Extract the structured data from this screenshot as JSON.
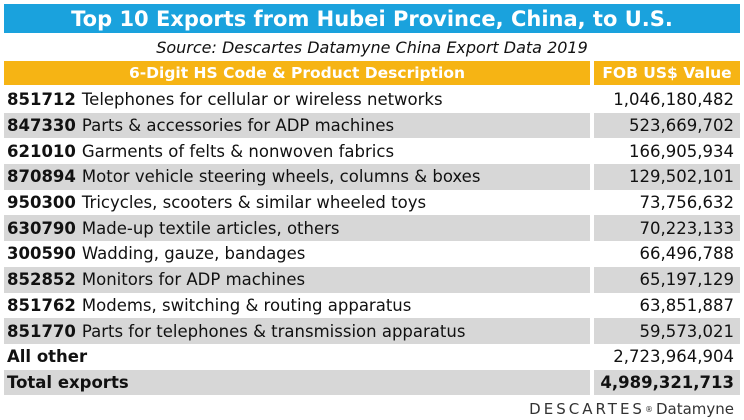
{
  "title": "Top 10 Exports from Hubei Province, China, to U.S.",
  "source": "Source: Descartes Datamyne China Export Data  2019",
  "header": {
    "description": "6-Digit HS Code & Product Description",
    "value": "FOB US$ Value"
  },
  "rows": [
    {
      "code": "851712",
      "description": "Telephones for cellular or wireless networks",
      "value": "1,046,180,482"
    },
    {
      "code": "847330",
      "description": "Parts & accessories for ADP machines",
      "value": "523,669,702"
    },
    {
      "code": "621010",
      "description": "Garments of felts & nonwoven fabrics",
      "value": "166,905,934"
    },
    {
      "code": "870894",
      "description": "Motor vehicle steering wheels, columns & boxes",
      "value": "129,502,101"
    },
    {
      "code": "950300",
      "description": "Tricycles, scooters & similar wheeled toys",
      "value": "73,756,632"
    },
    {
      "code": "630790",
      "description": "Made-up textile articles, others",
      "value": "70,223,133"
    },
    {
      "code": "300590",
      "description": "Wadding, gauze, bandages",
      "value": "66,496,788"
    },
    {
      "code": "852852",
      "description": "Monitors for ADP machines",
      "value": "65,197,129"
    },
    {
      "code": "851762",
      "description": "Modems, switching & routing apparatus",
      "value": "63,851,887"
    },
    {
      "code": "851770",
      "description": "Parts for telephones & transmission apparatus",
      "value": "59,573,021"
    }
  ],
  "all_other": {
    "label": "All other",
    "value": "2,723,964,904"
  },
  "total": {
    "label": "Total exports",
    "value": "4,989,321,713"
  },
  "logo": {
    "brand": "DESCARTES",
    "reg": "®",
    "sub": "Datamyne"
  }
}
